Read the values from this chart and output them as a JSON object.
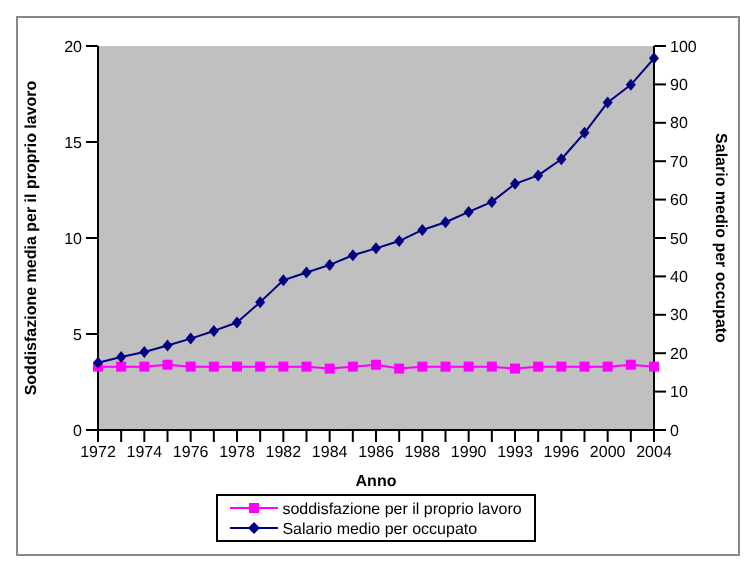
{
  "chart_data": {
    "type": "line",
    "xlabel": "Anno",
    "ylabel": "Soddisfazione media per il proprio lavoro",
    "y2label": "Salario medio per occupato",
    "categories": [
      "1972",
      null,
      "1974",
      null,
      "1976",
      null,
      "1978",
      null,
      "1982",
      null,
      "1984",
      null,
      "1986",
      null,
      "1988",
      null,
      "1990",
      null,
      "1993",
      null,
      "1996",
      null,
      "2000",
      null,
      "2004"
    ],
    "series": [
      {
        "name": "soddisfazione per il proprio lavoro",
        "color": "#ff00ff",
        "marker": "square",
        "values": [
          3.3,
          3.3,
          3.3,
          3.4,
          3.3,
          3.3,
          3.3,
          3.3,
          3.3,
          3.3,
          3.2,
          3.3,
          3.4,
          3.2,
          3.3,
          3.3,
          3.3,
          3.3,
          3.2,
          3.3,
          3.3,
          3.3,
          3.3,
          3.4,
          3.3
        ]
      },
      {
        "name": "Salario medio per occupato",
        "color": "#000080",
        "marker": "diamond",
        "axis": "y2",
        "values": [
          17.5,
          19,
          20.3,
          22,
          23.8,
          25.8,
          28,
          33.3,
          39,
          41,
          43,
          45.5,
          47.3,
          49.2,
          52.1,
          54.1,
          56.8,
          59.4,
          64.1,
          66.3,
          70.5,
          77.4,
          85.3,
          89.9,
          96.8
        ]
      }
    ],
    "ylim": [
      0,
      20
    ],
    "yticks": [
      0,
      5,
      10,
      15,
      20
    ],
    "y2lim": [
      0,
      100
    ],
    "y2ticks": [
      0,
      10,
      20,
      30,
      40,
      50,
      60,
      70,
      80,
      90,
      100
    ],
    "grid": false,
    "legend": "bottom"
  }
}
